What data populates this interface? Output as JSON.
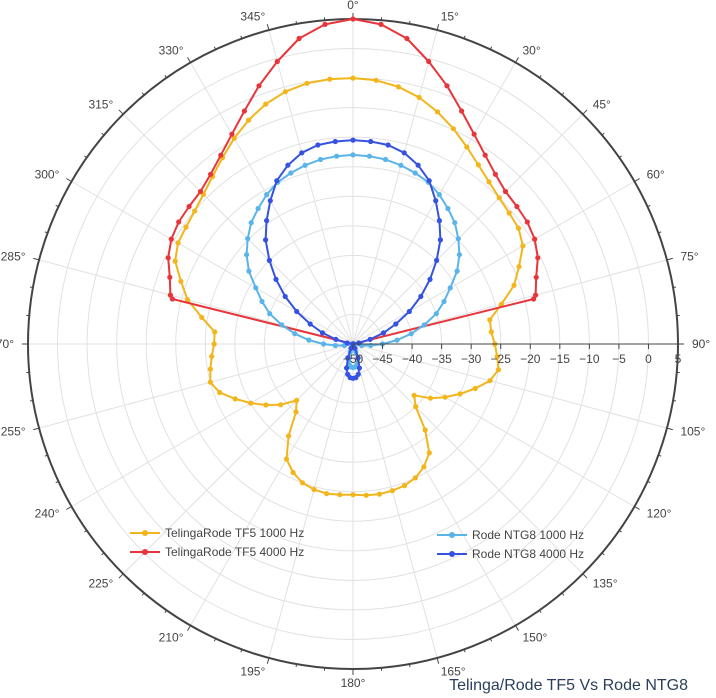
{
  "chart_data": {
    "type": "polar-line",
    "title": "Telinga/Rode TF5 Vs Rode NTG8",
    "radial_axis": {
      "range": [
        -50,
        5
      ],
      "ticks": [
        -50,
        -45,
        -40,
        -35,
        -30,
        -25,
        -20,
        -15,
        -10,
        -5,
        0,
        5
      ],
      "tick_labels": [
        "−50",
        "−45",
        "−40",
        "−35",
        "−30",
        "−25",
        "−20",
        "−15",
        "−10",
        "−5",
        "0",
        "5"
      ]
    },
    "angular_axis": {
      "direction": "clockwise",
      "zero_at": "top",
      "ticks": [
        0,
        15,
        30,
        45,
        60,
        75,
        90,
        105,
        120,
        135,
        150,
        165,
        180,
        195,
        210,
        225,
        240,
        255,
        270,
        285,
        300,
        315,
        330,
        345
      ],
      "tick_labels": [
        "0°",
        "15°",
        "30°",
        "45°",
        "60°",
        "75°",
        "90°",
        "105°",
        "120°",
        "135°",
        "150°",
        "165°",
        "180°",
        "195°",
        "210°",
        "225°",
        "240°",
        "255°",
        "270°",
        "285°",
        "300°",
        "315°",
        "330°",
        "345°"
      ]
    },
    "grid": true,
    "legend_groups": [
      {
        "placement": "bottom-left",
        "entries": [
          0,
          1
        ]
      },
      {
        "placement": "bottom-right",
        "entries": [
          2,
          3
        ]
      }
    ],
    "series": [
      {
        "name": "TelingaRode TF5 1000 Hz",
        "color": "#f2b51c",
        "theta": [
          0,
          5,
          10,
          15,
          20,
          25,
          30,
          35,
          40,
          45,
          50,
          55,
          60,
          65,
          70,
          75,
          80,
          85,
          90,
          95,
          100,
          105,
          110,
          115,
          120,
          125,
          130,
          135,
          140,
          145,
          150,
          155,
          160,
          165,
          170,
          175,
          180,
          185,
          190,
          195,
          200,
          205,
          210,
          215,
          220,
          225,
          230,
          235,
          240,
          245,
          250,
          255,
          260,
          265,
          270,
          275,
          280,
          285,
          290,
          295,
          300,
          305,
          310,
          315,
          320,
          325,
          330,
          335,
          340,
          345,
          350,
          355
        ],
        "r": [
          -5,
          -5.2,
          -5.8,
          -6.8,
          -8.2,
          -9.8,
          -11.5,
          -13,
          -14.2,
          -15,
          -15.5,
          -15.8,
          -16.8,
          -19,
          -21,
          -24,
          -26.5,
          -26.5,
          -26,
          -25.5,
          -25,
          -26,
          -28,
          -30,
          -32,
          -34,
          -36.5,
          -35,
          -31,
          -27.5,
          -26,
          -25,
          -24.5,
          -24.3,
          -24.2,
          -24.3,
          -24.5,
          -24.4,
          -24.3,
          -24.5,
          -25,
          -26,
          -27.5,
          -31,
          -35,
          -36.5,
          -34,
          -32,
          -30,
          -28,
          -26,
          -25,
          -25.5,
          -26,
          -26.5,
          -26.5,
          -24,
          -21,
          -19,
          -16.8,
          -15.8,
          -15.5,
          -15,
          -14.2,
          -13,
          -11.5,
          -9.8,
          -8.2,
          -6.8,
          -5.8,
          -5.2,
          -5
        ]
      },
      {
        "name": "TelingaRode TF5 4000 Hz",
        "color": "#e8353b",
        "theta": [
          0,
          5,
          10,
          15,
          20,
          25,
          30,
          35,
          40,
          45,
          50,
          55,
          60,
          65,
          70,
          75,
          76,
          80,
          280,
          284,
          285,
          290,
          295,
          300,
          305,
          310,
          315,
          320,
          325,
          330,
          335,
          340,
          345,
          350,
          355
        ],
        "r": [
          5,
          4.3,
          2.5,
          -0.5,
          -3.5,
          -6.5,
          -9,
          -11,
          -12.5,
          -13.5,
          -13.8,
          -14,
          -14.5,
          -15.5,
          -17,
          -18,
          -18.5,
          -50,
          -50,
          -18.5,
          -18,
          -17,
          -15.5,
          -14.5,
          -14,
          -13.8,
          -13.5,
          -12.5,
          -11,
          -9,
          -6.5,
          -3.5,
          -0.5,
          2.5,
          4.3
        ]
      },
      {
        "name": "Rode NTG8 1000 Hz",
        "color": "#5ab4ea",
        "theta": [
          0,
          5,
          10,
          15,
          20,
          25,
          30,
          35,
          40,
          45,
          50,
          55,
          60,
          65,
          70,
          75,
          80,
          85,
          90,
          95,
          100,
          105,
          110,
          115,
          120,
          125,
          130,
          135,
          140,
          145,
          150,
          155,
          160,
          165,
          170,
          175,
          180,
          185,
          190,
          195,
          200,
          205,
          210,
          215,
          220,
          225,
          230,
          235,
          240,
          245,
          250,
          255,
          260,
          265,
          270,
          275,
          280,
          285,
          290,
          295,
          300,
          305,
          310,
          315,
          320,
          325,
          330,
          335,
          340,
          345,
          350,
          355
        ],
        "r": [
          -18,
          -18.1,
          -18.3,
          -18.7,
          -19.2,
          -19.8,
          -20.8,
          -22,
          -23.2,
          -24.8,
          -26.5,
          -28.5,
          -31,
          -33,
          -35,
          -37.5,
          -40,
          -42.5,
          -45,
          -47,
          -48.5,
          -49.8,
          -50,
          -50,
          -50,
          -50,
          -50,
          -50,
          -50,
          -50,
          -50,
          -49.8,
          -48.6,
          -47.2,
          -46.4,
          -46.1,
          -46,
          -46.1,
          -46.4,
          -47.2,
          -48.6,
          -49.8,
          -50,
          -50,
          -50,
          -50,
          -50,
          -50,
          -50,
          -50,
          -50,
          -49.8,
          -48.5,
          -47,
          -45,
          -42.5,
          -40,
          -37.5,
          -35,
          -33,
          -31,
          -28.5,
          -26.5,
          -24.8,
          -23.2,
          -22,
          -20.8,
          -19.8,
          -19.2,
          -18.7,
          -18.3,
          -18.1
        ]
      },
      {
        "name": "Rode NTG8 4000 Hz",
        "color": "#3553e0",
        "theta": [
          0,
          5,
          10,
          15,
          20,
          25,
          30,
          35,
          40,
          45,
          50,
          55,
          60,
          65,
          70,
          75,
          80,
          85,
          90,
          95,
          100,
          105,
          110,
          115,
          120,
          125,
          130,
          135,
          140,
          145,
          150,
          155,
          160,
          165,
          170,
          175,
          180,
          185,
          190,
          195,
          200,
          205,
          210,
          215,
          220,
          225,
          230,
          235,
          240,
          245,
          250,
          255,
          260,
          265,
          270,
          275,
          280,
          285,
          290,
          295,
          300,
          305,
          310,
          315,
          320,
          325,
          330,
          335,
          340,
          345,
          350,
          355
        ],
        "r": [
          -15.5,
          -15.6,
          -15.8,
          -16.5,
          -17.8,
          -19.5,
          -22,
          -24.5,
          -27,
          -30,
          -33,
          -36,
          -39,
          -42,
          -44.5,
          -47,
          -49,
          -50,
          -50,
          -50,
          -50,
          -50,
          -50,
          -50,
          -50,
          -50,
          -50,
          -50,
          -50,
          -50,
          -50,
          -49.2,
          -47.5,
          -45.8,
          -44.8,
          -44.3,
          -44.2,
          -44.3,
          -44.8,
          -45.8,
          -47.5,
          -49.2,
          -50,
          -50,
          -50,
          -50,
          -50,
          -50,
          -50,
          -50,
          -50,
          -50,
          -50,
          -50,
          -50,
          -50,
          -49,
          -47,
          -44.5,
          -42,
          -39,
          -36,
          -33,
          -30,
          -27,
          -24.5,
          -22,
          -19.5,
          -17.8,
          -16.5,
          -15.8,
          -15.6
        ]
      }
    ]
  }
}
